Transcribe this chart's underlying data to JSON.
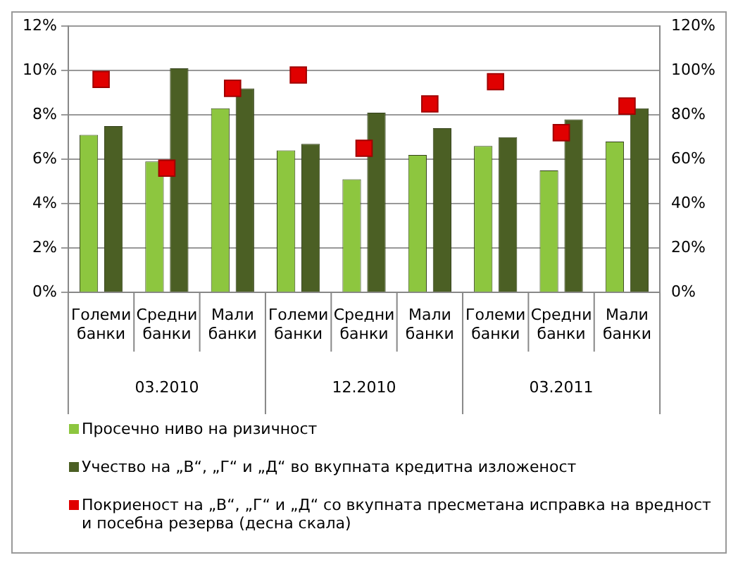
{
  "chart_data": {
    "type": "bar",
    "categories": [
      "Големи банки",
      "Средни банки",
      "Мали банки",
      "Големи банки",
      "Средни банки",
      "Мали банки",
      "Големи банки",
      "Средни банки",
      "Мали банки"
    ],
    "series": [
      {
        "name": "Просечно ниво на ризичност",
        "color": "#8dc63f",
        "values": [
          7.1,
          5.9,
          8.3,
          6.4,
          5.1,
          6.2,
          6.6,
          5.5,
          6.8
        ]
      },
      {
        "name": "Учество на „В“, „Г“ и „Д“ во вкупната кредитна изложеност",
        "color": "#4b5f24",
        "values": [
          7.5,
          10.1,
          9.2,
          6.7,
          8.1,
          7.4,
          7.0,
          7.8,
          8.3
        ]
      },
      {
        "name": "Покриеност на „В“, „Г“ и „Д“ со вкупната пресметана исправка на вредност и посебна резерва (десна скала)",
        "color": "#e00000",
        "type": "scatter",
        "marker": "square",
        "axis": "y2",
        "values": [
          96,
          56,
          92,
          98,
          65,
          85,
          95,
          72,
          84
        ]
      }
    ],
    "ylim": [
      0,
      12
    ],
    "yticks": [
      {
        "value": 0,
        "label": "0%"
      },
      {
        "value": 2,
        "label": "2%"
      },
      {
        "value": 4,
        "label": "4%"
      },
      {
        "value": 6,
        "label": "6%"
      },
      {
        "value": 8,
        "label": "8%"
      },
      {
        "value": 10,
        "label": "10%"
      },
      {
        "value": 12,
        "label": "12%"
      }
    ],
    "y2lim": [
      0,
      120
    ],
    "y2ticks": [
      {
        "value": 0,
        "label": "0%"
      },
      {
        "value": 20,
        "label": "20%"
      },
      {
        "value": 40,
        "label": "40%"
      },
      {
        "value": 60,
        "label": "60%"
      },
      {
        "value": 80,
        "label": "80%"
      },
      {
        "value": 100,
        "label": "100%"
      },
      {
        "value": 120,
        "label": "120%"
      }
    ],
    "annotations": [
      "03.2010",
      "12.2010",
      "03.2011"
    ],
    "grid": "y",
    "legend": "bottom"
  }
}
